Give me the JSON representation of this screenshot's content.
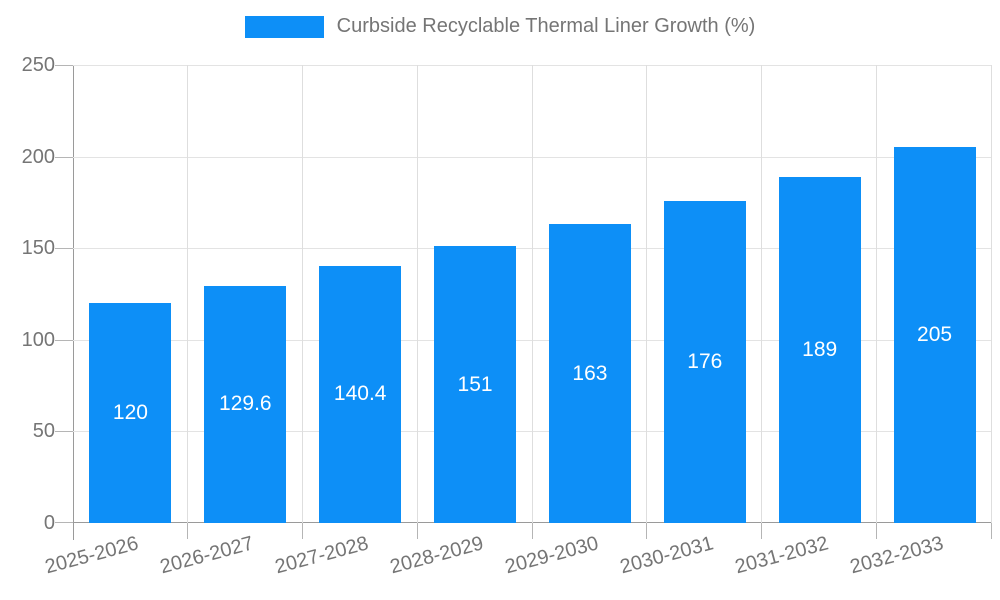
{
  "chart_data": {
    "type": "bar",
    "title": "Curbside Recyclable Thermal Liner Growth (%)",
    "categories": [
      "2025-2026",
      "2026-2027",
      "2027-2028",
      "2028-2029",
      "2029-2030",
      "2030-2031",
      "2031-2032",
      "2032-2033"
    ],
    "values": [
      120,
      129.6,
      140.4,
      151,
      163,
      176,
      189,
      205
    ],
    "yticks": [
      0,
      50,
      100,
      150,
      200,
      250
    ],
    "ylim": [
      0,
      250
    ],
    "xlabel": "",
    "ylabel": "",
    "legend_position": "top",
    "grid": true,
    "colors": {
      "bar": "#0d8ff7",
      "bar_value_text": "#ffffff",
      "axis_text": "#757575",
      "gridline": "#e3e3e3",
      "axis_line": "#9a9a9a",
      "background": "#ffffff"
    }
  }
}
